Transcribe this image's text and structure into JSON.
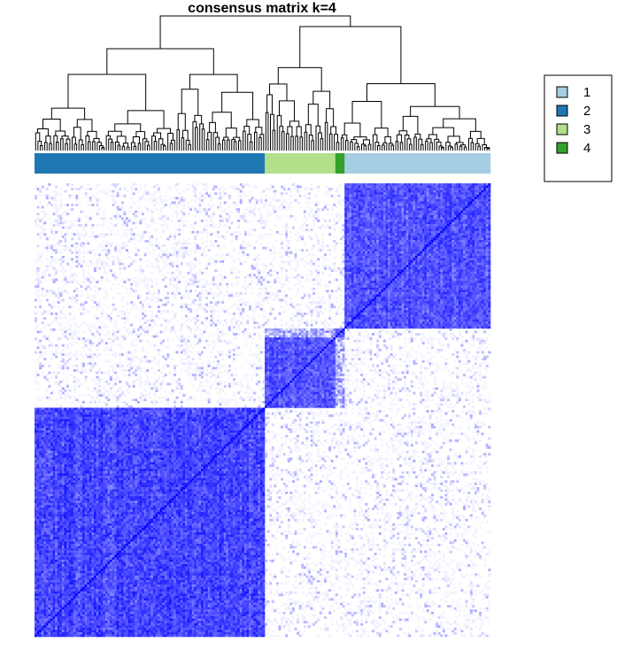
{
  "chart_data": {
    "type": "heatmap",
    "title": "consensus matrix k=4",
    "color_low": "#ffffff",
    "color_high": "#0000ff",
    "value_range": [
      0,
      1
    ],
    "dendrogram": "top",
    "legend_position": "right",
    "classes": [
      {
        "label": "1",
        "color": "#a6cee3"
      },
      {
        "label": "2",
        "color": "#1f78b4"
      },
      {
        "label": "3",
        "color": "#b2df8a"
      },
      {
        "label": "4",
        "color": "#33a02c"
      }
    ],
    "class_annotation": [
      {
        "class": "2",
        "fraction": 0.505
      },
      {
        "class": "3",
        "fraction": 0.157
      },
      {
        "class": "4",
        "fraction": 0.02
      },
      {
        "class": "1",
        "fraction": 0.318
      }
    ],
    "matrix_blocks": [
      {
        "class": "2",
        "within_consensus": 0.85
      },
      {
        "class": "3",
        "within_consensus": 0.8
      },
      {
        "class": "4",
        "within_consensus": 0.75
      },
      {
        "class": "1",
        "within_consensus": 0.8
      }
    ]
  }
}
